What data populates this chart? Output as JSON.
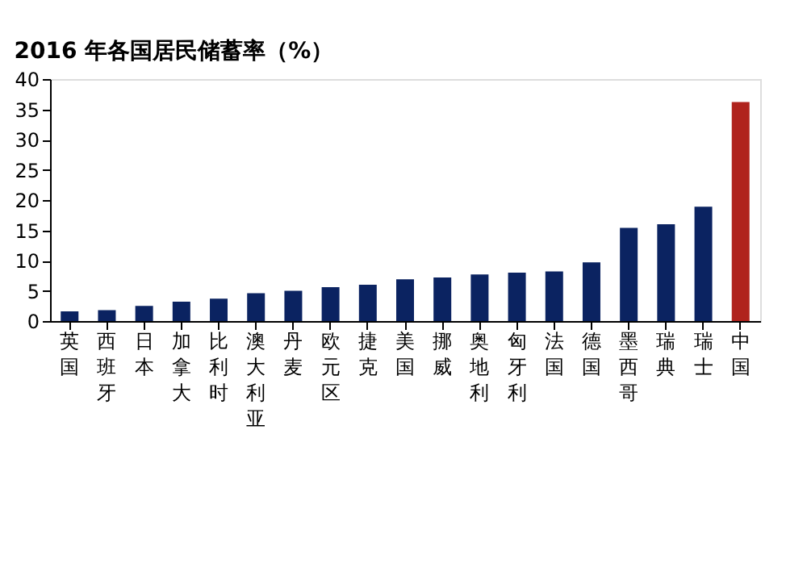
{
  "chart_data": {
    "type": "bar",
    "title": "2016 年各国居民储蓄率（%）",
    "categories": [
      "英国",
      "西班牙",
      "日本",
      "加拿大",
      "比利时",
      "澳大利亚",
      "丹麦",
      "欧元区",
      "捷克",
      "美国",
      "挪威",
      "奥地利",
      "匈牙利",
      "法国",
      "德国",
      "墨西哥",
      "瑞典",
      "瑞士",
      "中国"
    ],
    "values": [
      1.6,
      1.8,
      2.5,
      3.2,
      3.7,
      4.6,
      5.0,
      5.6,
      6.0,
      6.9,
      7.2,
      7.7,
      8.0,
      8.2,
      9.7,
      15.4,
      16.0,
      18.9,
      36.2
    ],
    "colors": [
      "#0b2361",
      "#0b2361",
      "#0b2361",
      "#0b2361",
      "#0b2361",
      "#0b2361",
      "#0b2361",
      "#0b2361",
      "#0b2361",
      "#0b2361",
      "#0b2361",
      "#0b2361",
      "#0b2361",
      "#0b2361",
      "#0b2361",
      "#0b2361",
      "#0b2361",
      "#0b2361",
      "#b0231d"
    ],
    "ylim": [
      0,
      40
    ],
    "yticks": [
      0,
      5,
      10,
      15,
      20,
      25,
      30,
      35,
      40
    ],
    "grid": false
  }
}
